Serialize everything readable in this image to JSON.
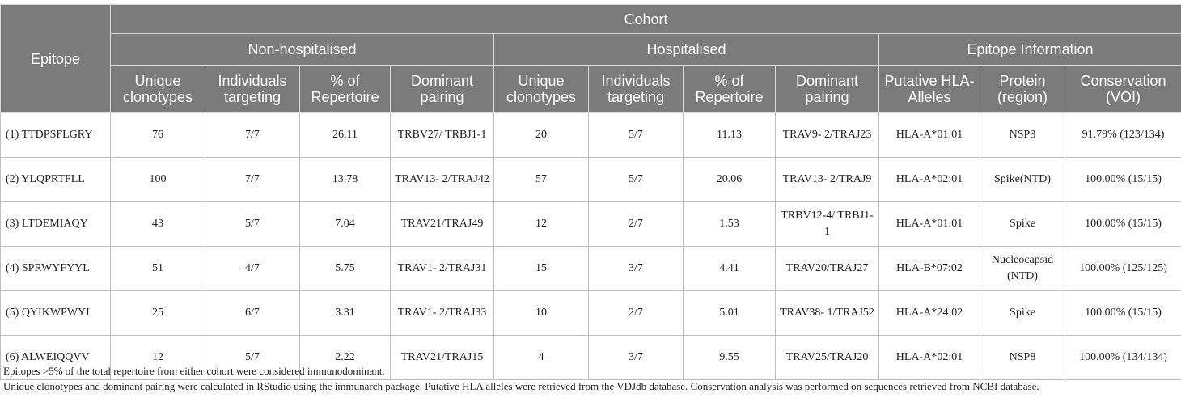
{
  "header": {
    "epitope": "Epitope",
    "cohort": "Cohort",
    "non_hospitalised": "Non-hospitalised",
    "hospitalised": "Hospitalised",
    "epitope_information": "Epitope Information",
    "sub": [
      "Unique clonotypes",
      "Individuals targeting",
      "% of Repertoire",
      "Dominant pairing",
      "Unique clonotypes",
      "Individuals targeting",
      "% of Repertoire",
      "Dominant pairing",
      "Putative HLA-Alleles",
      "Protein (region)",
      "Conservation (VOI)"
    ]
  },
  "rows": [
    [
      "(1) TTDPSFLGRY",
      "76",
      "7/7",
      "26.11",
      "TRBV27/ TRBJ1-1",
      "20",
      "5/7",
      "11.13",
      "TRAV9- 2/TRAJ23",
      "HLA-A*01:01",
      "NSP3",
      "91.79% (123/134)"
    ],
    [
      "(2) YLQPRTFLL",
      "100",
      "7/7",
      "13.78",
      "TRAV13- 2/TRAJ42",
      "57",
      "5/7",
      "20.06",
      "TRAV13- 2/TRAJ9",
      "HLA-A*02:01",
      "Spike(NTD)",
      "100.00% (15/15)"
    ],
    [
      "(3) LTDEMIAQY",
      "43",
      "5/7",
      "7.04",
      "TRAV21/TRAJ49",
      "12",
      "2/7",
      "1.53",
      "TRBV12-4/ TRBJ1-1",
      "HLA-A*01:01",
      "Spike",
      "100.00% (15/15)"
    ],
    [
      "(4) SPRWYFYYL",
      "51",
      "4/7",
      "5.75",
      "TRAV1- 2/TRAJ31",
      "15",
      "3/7",
      "4.41",
      "TRAV20/TRAJ27",
      "HLA-B*07:02",
      "Nucleocapsid (NTD)",
      "100.00% (125/125)"
    ],
    [
      "(5) QYIKWPWYI",
      "25",
      "6/7",
      "3.31",
      "TRAV1- 2/TRAJ33",
      "10",
      "2/7",
      "5.01",
      "TRAV38- 1/TRAJ52",
      "HLA-A*24:02",
      "Spike",
      "100.00% (15/15)"
    ],
    [
      "(6) ALWEIQQVV",
      "12",
      "5/7",
      "2.22",
      "TRAV21/TRAJ15",
      "4",
      "3/7",
      "9.55",
      "TRAV25/TRAJ20",
      "HLA-A*02:01",
      "NSP8",
      "100.00% (134/134)"
    ]
  ],
  "notes": [
    "Epitopes >5% of the total repertoire from either cohort were considered immunodominant.",
    "Unique clonotypes and dominant pairing were calculated in RStudio using the immunarch package. Putative HLA alleles were retrieved from the VDJdb database. Conservation analysis was performed on sequences retrieved from NCBI database."
  ],
  "colors": {
    "header_bg": "#7b7b7b",
    "header_text": "#ffffff",
    "border": "#bfbfbf"
  }
}
